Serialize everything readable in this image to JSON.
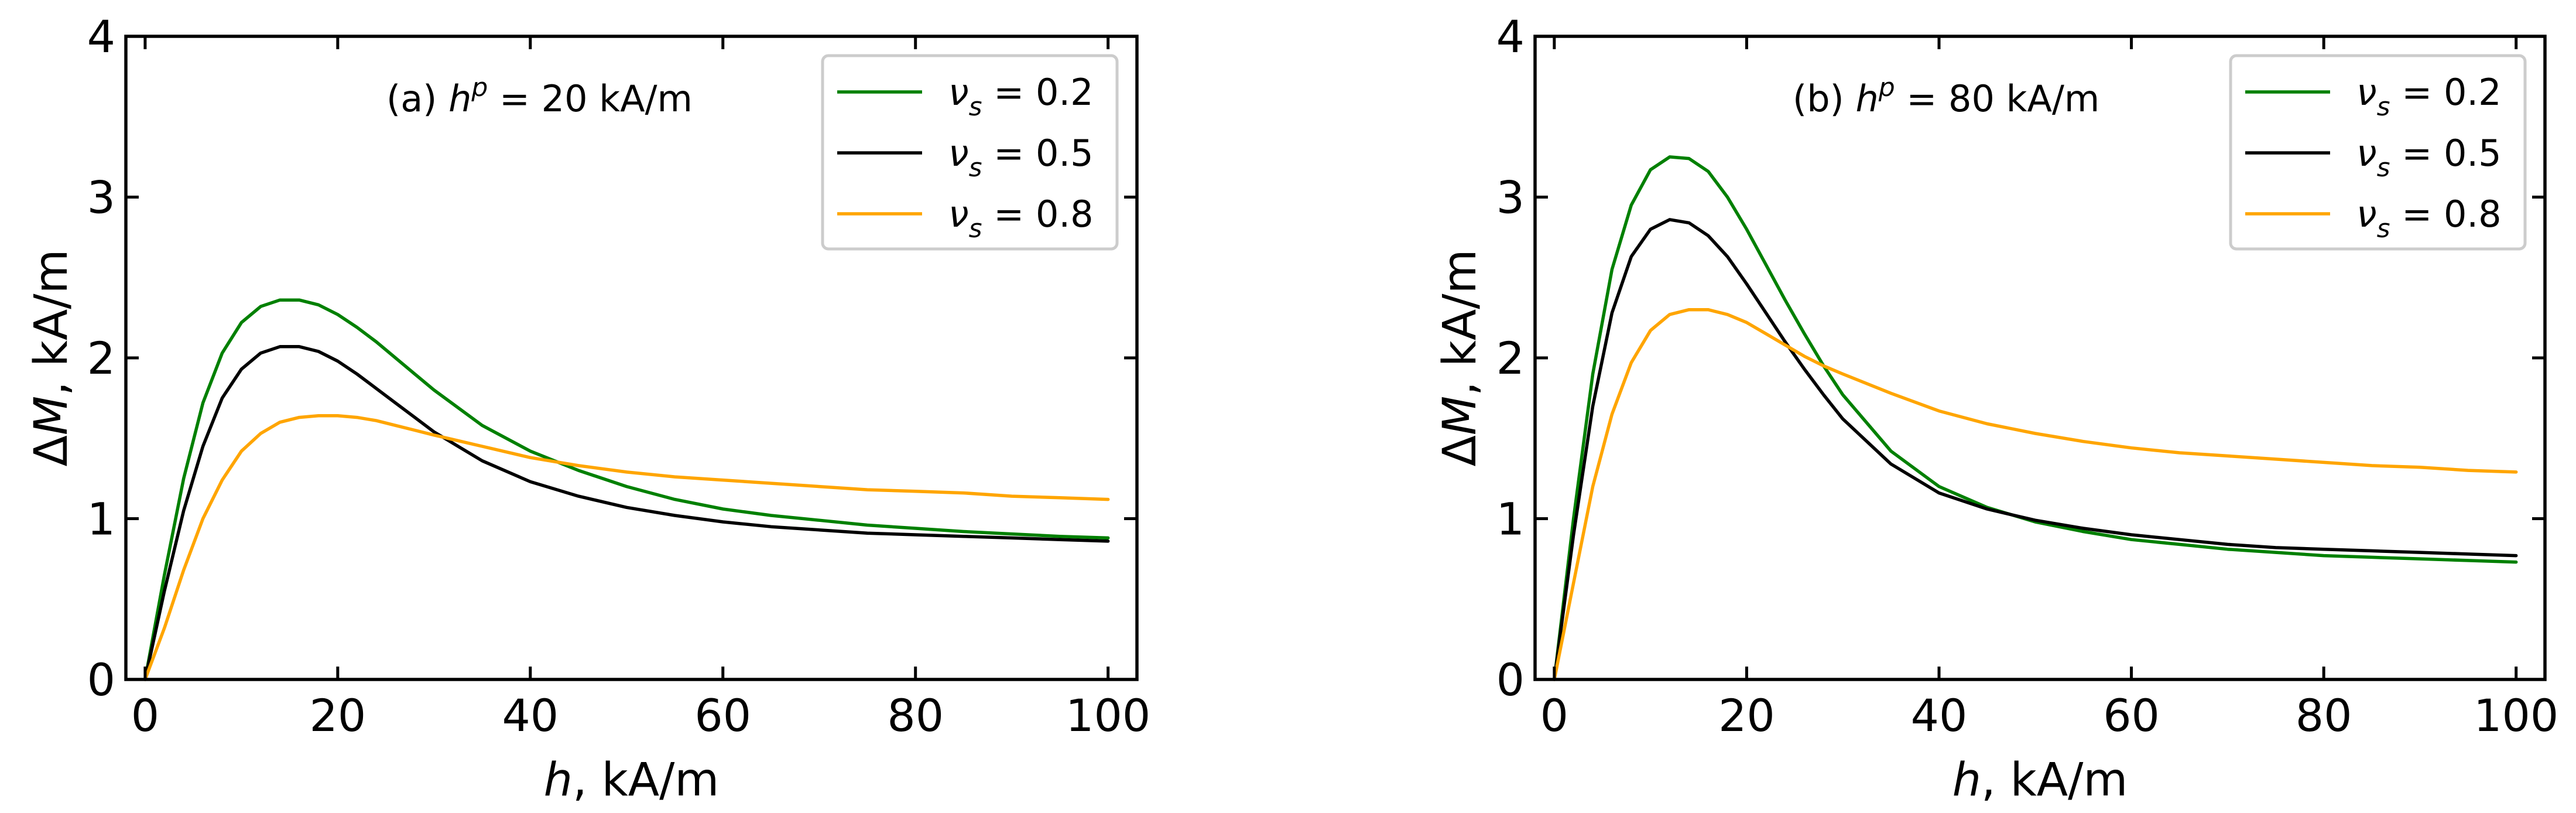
{
  "chart_data": [
    {
      "type": "line",
      "panel": "a",
      "annotation": {
        "prefix": "(a) ",
        "var": "h",
        "sup": "p",
        "rest": " = 20 kA/m"
      },
      "xlabel": {
        "var": "h",
        "unit": ", kA/m"
      },
      "ylabel": {
        "var": "ΔM",
        "unit": ", kA/m"
      },
      "xlim": [
        -2,
        103
      ],
      "ylim": [
        0,
        4
      ],
      "xticks": [
        0,
        20,
        40,
        60,
        80,
        100
      ],
      "yticks": [
        0,
        1,
        2,
        3,
        4
      ],
      "legend_position": "top-right",
      "series": [
        {
          "name": "ν_s = 0.2",
          "label": {
            "var": "ν",
            "sub": "s",
            "rest": " = 0.2"
          },
          "color": "#008000",
          "x": [
            0,
            2,
            4,
            6,
            8,
            10,
            12,
            14,
            16,
            18,
            20,
            22,
            24,
            26,
            28,
            30,
            35,
            40,
            45,
            50,
            55,
            60,
            65,
            70,
            75,
            80,
            85,
            90,
            95,
            100
          ],
          "y": [
            0.0,
            0.65,
            1.25,
            1.72,
            2.03,
            2.22,
            2.32,
            2.36,
            2.36,
            2.33,
            2.27,
            2.19,
            2.1,
            2.0,
            1.9,
            1.8,
            1.58,
            1.42,
            1.3,
            1.2,
            1.12,
            1.06,
            1.02,
            0.99,
            0.96,
            0.94,
            0.92,
            0.905,
            0.89,
            0.88
          ]
        },
        {
          "name": "ν_s = 0.5",
          "label": {
            "var": "ν",
            "sub": "s",
            "rest": " = 0.5"
          },
          "color": "#000000",
          "x": [
            0,
            2,
            4,
            6,
            8,
            10,
            12,
            14,
            16,
            18,
            20,
            22,
            24,
            26,
            28,
            30,
            35,
            40,
            45,
            50,
            55,
            60,
            65,
            70,
            75,
            80,
            85,
            90,
            95,
            100
          ],
          "y": [
            0.0,
            0.55,
            1.05,
            1.45,
            1.75,
            1.93,
            2.03,
            2.07,
            2.07,
            2.04,
            1.98,
            1.9,
            1.81,
            1.72,
            1.63,
            1.54,
            1.36,
            1.23,
            1.14,
            1.07,
            1.02,
            0.98,
            0.95,
            0.93,
            0.91,
            0.9,
            0.89,
            0.88,
            0.87,
            0.86
          ]
        },
        {
          "name": "ν_s = 0.8",
          "label": {
            "var": "ν",
            "sub": "s",
            "rest": " = 0.8"
          },
          "color": "#FFA500",
          "x": [
            0,
            2,
            4,
            6,
            8,
            10,
            12,
            14,
            16,
            18,
            20,
            22,
            24,
            26,
            28,
            30,
            35,
            40,
            45,
            50,
            55,
            60,
            65,
            70,
            75,
            80,
            85,
            90,
            95,
            100
          ],
          "y": [
            0.0,
            0.32,
            0.68,
            1.0,
            1.24,
            1.42,
            1.53,
            1.6,
            1.63,
            1.64,
            1.64,
            1.63,
            1.61,
            1.58,
            1.55,
            1.52,
            1.45,
            1.38,
            1.33,
            1.29,
            1.26,
            1.24,
            1.22,
            1.2,
            1.18,
            1.17,
            1.16,
            1.14,
            1.13,
            1.12
          ]
        }
      ]
    },
    {
      "type": "line",
      "panel": "b",
      "annotation": {
        "prefix": "(b) ",
        "var": "h",
        "sup": "p",
        "rest": " = 80 kA/m"
      },
      "xlabel": {
        "var": "h",
        "unit": ", kA/m"
      },
      "ylabel": {
        "var": "ΔM",
        "unit": ", kA/m"
      },
      "xlim": [
        -2,
        103
      ],
      "ylim": [
        0,
        4
      ],
      "xticks": [
        0,
        20,
        40,
        60,
        80,
        100
      ],
      "yticks": [
        0,
        1,
        2,
        3,
        4
      ],
      "legend_position": "top-right",
      "series": [
        {
          "name": "ν_s = 0.2",
          "label": {
            "var": "ν",
            "sub": "s",
            "rest": " = 0.2"
          },
          "color": "#008000",
          "x": [
            0,
            2,
            4,
            6,
            8,
            10,
            12,
            14,
            16,
            18,
            20,
            22,
            24,
            26,
            28,
            30,
            35,
            40,
            45,
            50,
            55,
            60,
            65,
            70,
            75,
            80,
            85,
            90,
            95,
            100
          ],
          "y": [
            0.0,
            1.0,
            1.9,
            2.55,
            2.95,
            3.17,
            3.25,
            3.24,
            3.16,
            3.0,
            2.8,
            2.58,
            2.36,
            2.15,
            1.95,
            1.77,
            1.42,
            1.2,
            1.07,
            0.98,
            0.92,
            0.87,
            0.84,
            0.81,
            0.79,
            0.77,
            0.76,
            0.75,
            0.74,
            0.73
          ]
        },
        {
          "name": "ν_s = 0.5",
          "label": {
            "var": "ν",
            "sub": "s",
            "rest": " = 0.5"
          },
          "color": "#000000",
          "x": [
            0,
            2,
            4,
            6,
            8,
            10,
            12,
            14,
            16,
            18,
            20,
            22,
            24,
            26,
            28,
            30,
            35,
            40,
            45,
            50,
            55,
            60,
            65,
            70,
            75,
            80,
            85,
            90,
            95,
            100
          ],
          "y": [
            0.0,
            0.9,
            1.7,
            2.28,
            2.63,
            2.8,
            2.86,
            2.84,
            2.76,
            2.63,
            2.46,
            2.28,
            2.1,
            1.93,
            1.77,
            1.62,
            1.34,
            1.16,
            1.06,
            0.99,
            0.94,
            0.9,
            0.87,
            0.84,
            0.82,
            0.81,
            0.8,
            0.79,
            0.78,
            0.77
          ]
        },
        {
          "name": "ν_s = 0.8",
          "label": {
            "var": "ν",
            "sub": "s",
            "rest": " = 0.8"
          },
          "color": "#FFA500",
          "x": [
            0,
            2,
            4,
            6,
            8,
            10,
            12,
            14,
            16,
            18,
            20,
            22,
            24,
            26,
            28,
            30,
            35,
            40,
            45,
            50,
            55,
            60,
            65,
            70,
            75,
            80,
            85,
            90,
            95,
            100
          ],
          "y": [
            0.0,
            0.6,
            1.2,
            1.65,
            1.97,
            2.17,
            2.27,
            2.3,
            2.3,
            2.27,
            2.22,
            2.15,
            2.08,
            2.01,
            1.95,
            1.9,
            1.78,
            1.67,
            1.59,
            1.53,
            1.48,
            1.44,
            1.41,
            1.39,
            1.37,
            1.35,
            1.33,
            1.32,
            1.3,
            1.29
          ]
        }
      ]
    }
  ]
}
